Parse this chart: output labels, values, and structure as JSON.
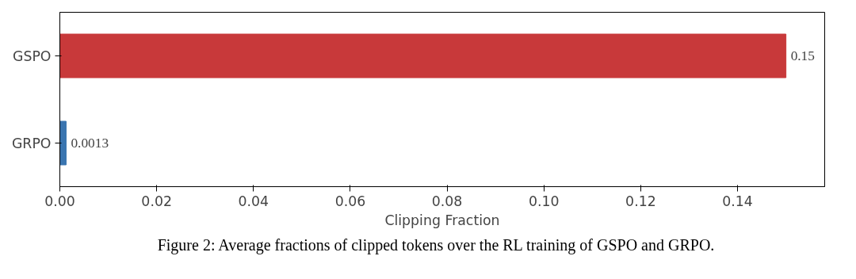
{
  "chart_data": {
    "type": "bar",
    "orientation": "horizontal",
    "categories": [
      "GSPO",
      "GRPO"
    ],
    "values": [
      0.15,
      0.0013
    ],
    "colors": [
      "#c8393a",
      "#3a75b0"
    ],
    "xlabel": "Clipping Fraction",
    "xlim": [
      0,
      0.158
    ],
    "xticks": [
      {
        "value": 0,
        "label": "0.00"
      },
      {
        "value": 0.02,
        "label": "0.02"
      },
      {
        "value": 0.04,
        "label": "0.04"
      },
      {
        "value": 0.06,
        "label": "0.06"
      },
      {
        "value": 0.08,
        "label": "0.08"
      },
      {
        "value": 0.1,
        "label": "0.10"
      },
      {
        "value": 0.12,
        "label": "0.12"
      },
      {
        "value": 0.14,
        "label": "0.14"
      }
    ],
    "value_labels": [
      "0.15",
      "0.0013"
    ],
    "annotations": [
      "Figure 2: Average fractions of clipped tokens over the RL training of GSPO and GRPO."
    ]
  }
}
